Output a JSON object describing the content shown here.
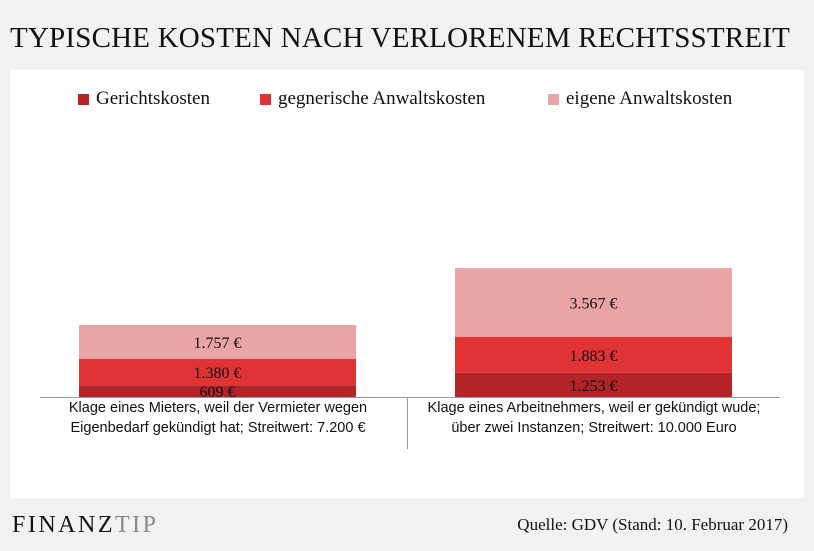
{
  "title": "TYPISCHE KOSTEN NACH VERLORENEM RECHTSSTREIT",
  "brand": {
    "part1": "FINANZ",
    "part2": "TIP"
  },
  "source": "Quelle: GDV (Stand: 10. Februar 2017)",
  "colors": {
    "gericht": "#b22427",
    "gegner": "#e03335",
    "eigene": "#e9a5a5"
  },
  "chart_data": {
    "type": "bar",
    "stacked": true,
    "categories": [
      [
        "Klage eines Mieters, weil der Vermieter wegen",
        "Eigenbedarf gekündigt hat; Streitwert: 7.200 €"
      ],
      [
        "Klage eines Arbeitnehmers, weil er gekündigt wude;",
        "über zwei Instanzen; Streitwert: 10.000 Euro"
      ]
    ],
    "series": [
      {
        "name": "Gerichtskosten",
        "values": [
          609,
          1253
        ],
        "labels": [
          "609 €",
          "1.253 €"
        ]
      },
      {
        "name": "gegnerische Anwaltskosten",
        "values": [
          1380,
          1883
        ],
        "labels": [
          "1.380 €",
          "1.883 €"
        ]
      },
      {
        "name": "eigene Anwaltskosten",
        "values": [
          1757,
          3567
        ],
        "labels": [
          "1.757 €",
          "3.567 €"
        ]
      }
    ],
    "legend_position": "top",
    "grid": false
  }
}
